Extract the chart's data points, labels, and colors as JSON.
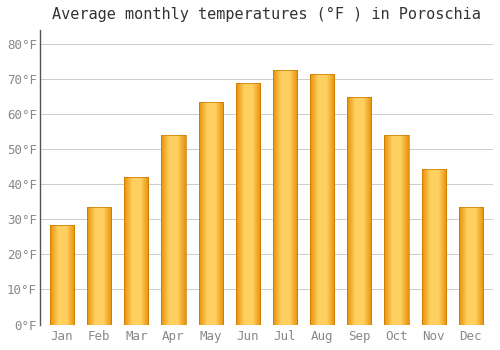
{
  "title": "Average monthly temperatures (°F ) in Poroschia",
  "months": [
    "Jan",
    "Feb",
    "Mar",
    "Apr",
    "May",
    "Jun",
    "Jul",
    "Aug",
    "Sep",
    "Oct",
    "Nov",
    "Dec"
  ],
  "values": [
    28.5,
    33.5,
    42.0,
    54.0,
    63.5,
    69.0,
    72.5,
    71.5,
    65.0,
    54.0,
    44.5,
    33.5
  ],
  "bar_color_face": "#FFA500",
  "bar_color_edge": "#CC7700",
  "bar_color_light": "#FFD080",
  "ylim": [
    0,
    84
  ],
  "yticks": [
    0,
    10,
    20,
    30,
    40,
    50,
    60,
    70,
    80
  ],
  "ylabel_suffix": "°F",
  "background_color": "#FFFFFF",
  "grid_color": "#CCCCCC",
  "title_fontsize": 11,
  "tick_fontsize": 9,
  "font_color": "#888888",
  "title_color": "#333333",
  "spine_color": "#555555"
}
